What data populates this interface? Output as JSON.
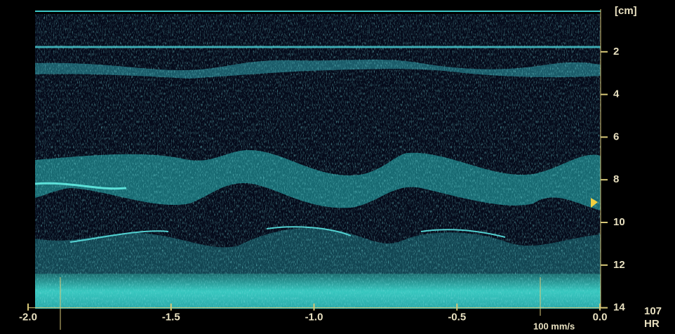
{
  "chart_data": {
    "type": "mmode",
    "ylabel": "[cm]",
    "ylim": [
      0,
      14
    ],
    "yticks": [
      2,
      4,
      6,
      8,
      10,
      12,
      14
    ],
    "xlim": [
      -2.0,
      0.0
    ],
    "xticks": [
      {
        "value": -2.0,
        "label": "-2.0"
      },
      {
        "value": -1.5,
        "label": "-1.5"
      },
      {
        "value": -1.0,
        "label": "-1.0"
      },
      {
        "value": -0.5,
        "label": "-0.5"
      },
      {
        "value": 0.0,
        "label": "0.0"
      }
    ],
    "sweep_speed": "100 mm/s",
    "heart_rate": 107,
    "heart_rate_label": "HR",
    "color": "#d8c878"
  }
}
